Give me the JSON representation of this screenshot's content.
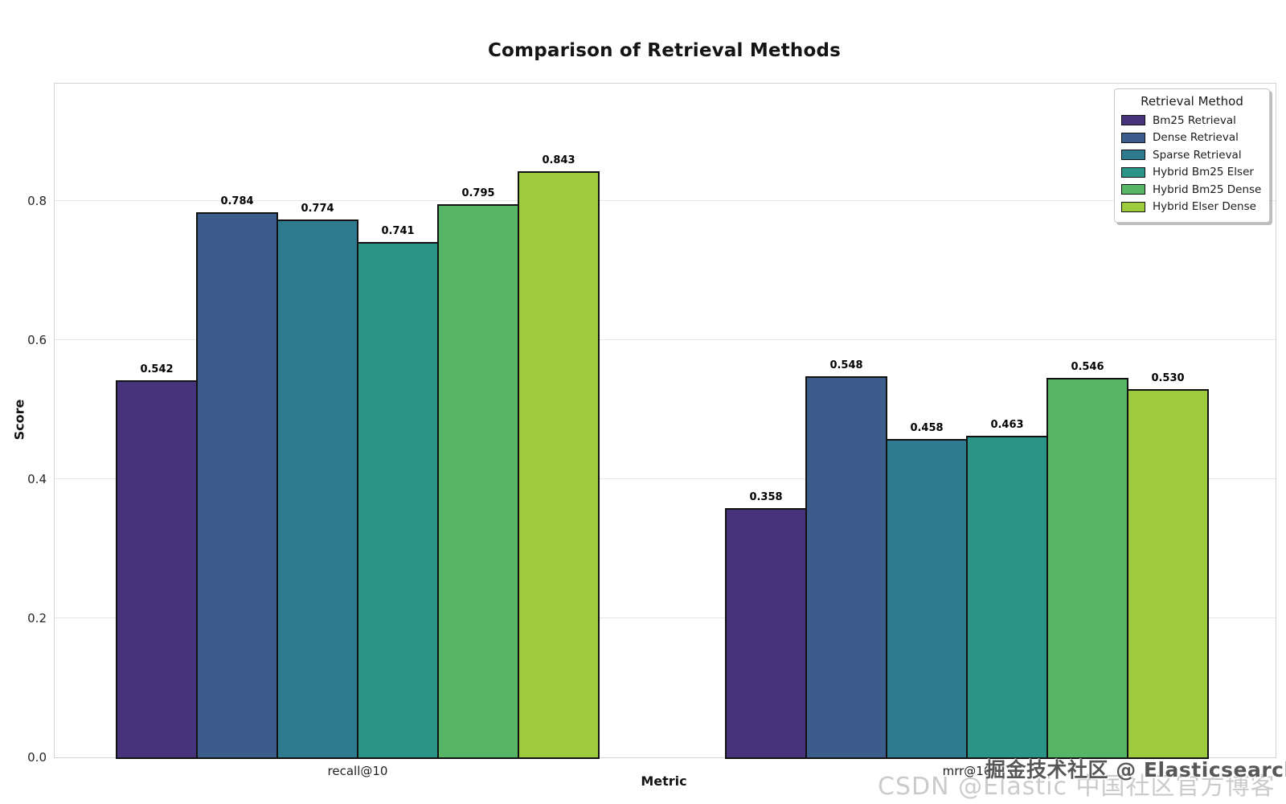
{
  "chart_data": {
    "type": "bar",
    "title": "Comparison of Retrieval Methods",
    "xlabel": "Metric",
    "ylabel": "Score",
    "categories": [
      "recall@10",
      "mrr@10"
    ],
    "series": [
      {
        "name": "Bm25 Retrieval",
        "color": "#46337b",
        "values": [
          0.542,
          0.358
        ]
      },
      {
        "name": "Dense Retrieval",
        "color": "#3c5d8b",
        "values": [
          0.784,
          0.548
        ]
      },
      {
        "name": "Sparse Retrieval",
        "color": "#2e7a8e",
        "values": [
          0.774,
          0.458
        ]
      },
      {
        "name": "Hybrid Bm25 Elser",
        "color": "#2b9487",
        "values": [
          0.741,
          0.463
        ]
      },
      {
        "name": "Hybrid Bm25 Dense",
        "color": "#57b566",
        "values": [
          0.795,
          0.546
        ]
      },
      {
        "name": "Hybrid Elser Dense",
        "color": "#9ecb3e",
        "values": [
          0.843,
          0.53
        ]
      }
    ],
    "legend_title": "Retrieval Method",
    "legend_position": "upper right",
    "ylim": [
      0,
      0.969
    ],
    "yticks": [
      0.0,
      0.2,
      0.4,
      0.6,
      0.8
    ],
    "grid": true,
    "bar_edge_color": "#121212",
    "value_label_decimals": 3
  },
  "watermarks": {
    "csdn": "CSDN @Elastic 中国社区官方博客",
    "juejin": "掘金技术社区 @ Elasticsearch"
  }
}
